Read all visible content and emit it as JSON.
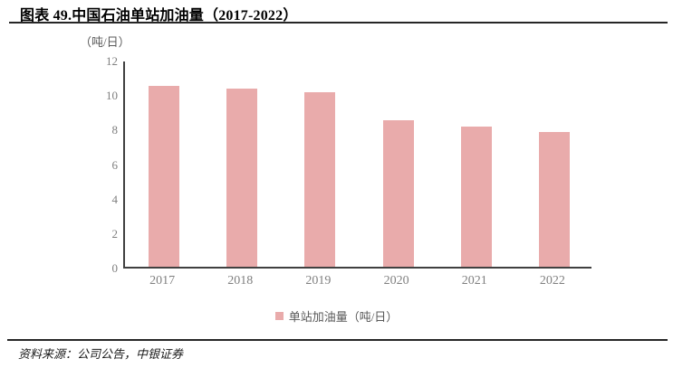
{
  "header": {
    "title": "图表 49.中国石油单站加油量（2017-2022）"
  },
  "chart_data": {
    "type": "bar",
    "title": "中国石油单站加油量（2017-2022）",
    "unit_label": "（吨/日）",
    "categories": [
      "2017",
      "2018",
      "2019",
      "2020",
      "2021",
      "2022"
    ],
    "values": [
      10.5,
      10.3,
      10.1,
      8.5,
      8.1,
      7.8
    ],
    "series_name": "单站加油量（吨/日）",
    "xlabel": "",
    "ylabel": "（吨/日）",
    "ylim": [
      0,
      12
    ],
    "yticks": [
      0,
      2,
      4,
      6,
      8,
      10,
      12
    ],
    "grid": false,
    "legend_position": "bottom",
    "bar_color": "#E9ABAB",
    "axis_color": "#404040",
    "tick_label_color": "#7f7f7f"
  },
  "legend": {
    "label": "单站加油量（吨/日）"
  },
  "footer": {
    "source": "资料来源：公司公告，中银证券"
  }
}
